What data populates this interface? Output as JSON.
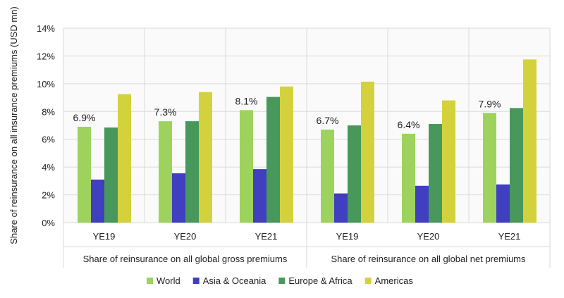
{
  "chart_data": {
    "type": "bar",
    "title": "",
    "ylabel": "Share of reinsurance on all insurance premiums (USD mn)",
    "xlabel": "",
    "ylim": [
      0,
      14
    ],
    "yticks": [
      "0%",
      "2%",
      "4%",
      "6%",
      "8%",
      "10%",
      "12%",
      "14%"
    ],
    "grid": true,
    "legend_position": "bottom",
    "groups": [
      {
        "label": "Share of reinsurance on all global gross premiums",
        "categories": [
          "YE19",
          "YE20",
          "YE21"
        ]
      },
      {
        "label": "Share of reinsurance on all global net premiums",
        "categories": [
          "YE19",
          "YE20",
          "YE21"
        ]
      }
    ],
    "categories": [
      "YE19",
      "YE20",
      "YE21",
      "YE19",
      "YE20",
      "YE21"
    ],
    "series": [
      {
        "name": "World",
        "color": "#9dd35c",
        "values": [
          6.9,
          7.3,
          8.1,
          6.7,
          6.4,
          7.9
        ],
        "data_labels": [
          "6.9%",
          "7.3%",
          "8.1%",
          "6.7%",
          "6.4%",
          "7.9%"
        ]
      },
      {
        "name": "Asia & Oceania",
        "color": "#3f3fc0",
        "values": [
          3.1,
          3.55,
          3.85,
          2.1,
          2.65,
          2.75
        ]
      },
      {
        "name": "Europe & Africa",
        "color": "#47985a",
        "values": [
          6.85,
          7.3,
          9.05,
          7.0,
          7.1,
          8.25
        ]
      },
      {
        "name": "Americas",
        "color": "#d4d23c",
        "values": [
          9.25,
          9.4,
          9.8,
          10.15,
          8.8,
          11.75
        ]
      }
    ]
  }
}
